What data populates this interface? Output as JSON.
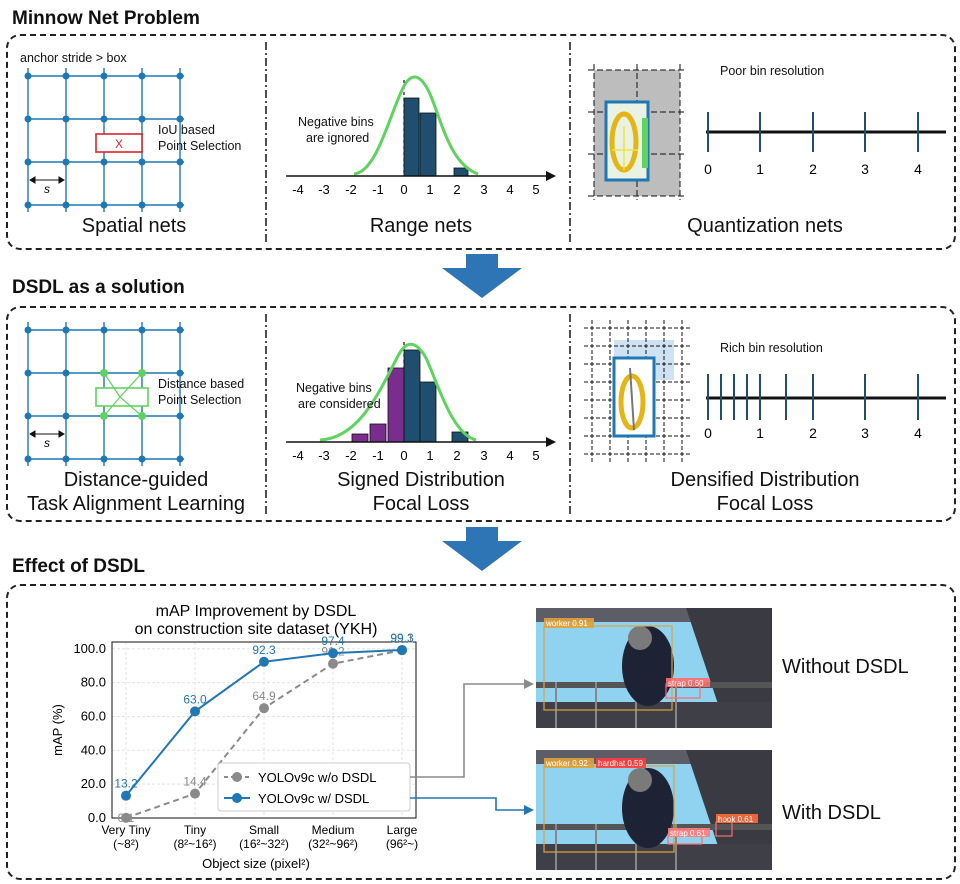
{
  "sections": {
    "s1_title": "Minnow Net Problem",
    "s2_title": "DSDL as a solution",
    "s3_title": "Effect of DSDL"
  },
  "row1": {
    "spatial": {
      "note": "anchor stride > box",
      "iou_line1": "IoU based",
      "iou_line2": "Point Selection",
      "stride_symbol": "s",
      "box_marker": "X",
      "label": "Spatial nets"
    },
    "range": {
      "neg_line1": "Negative bins",
      "neg_line2": "are ignored",
      "ticks": [
        "-4",
        "-3",
        "-2",
        "-1",
        "0",
        "1",
        "2",
        "3",
        "4",
        "5"
      ],
      "label": "Range nets"
    },
    "quant": {
      "note": "Poor bin resolution",
      "ticks": [
        "0",
        "1",
        "2",
        "3",
        "4"
      ],
      "label": "Quantization nets"
    }
  },
  "row2": {
    "spatial": {
      "dist_line1": "Distance based",
      "dist_line2": "Point Selection",
      "stride_symbol": "s",
      "label_line1": "Distance-guided",
      "label_line2": "Task Alignment Learning"
    },
    "range": {
      "neg_line1": "Negative bins",
      "neg_line2": "are considered",
      "ticks": [
        "-4",
        "-3",
        "-2",
        "-1",
        "0",
        "1",
        "2",
        "3",
        "4",
        "5"
      ],
      "label_line1": "Signed Distribution",
      "label_line2": "Focal Loss"
    },
    "quant": {
      "note": "Rich bin resolution",
      "ticks": [
        "0",
        "1",
        "2",
        "3",
        "4"
      ],
      "label_line1": "Densified Distribution",
      "label_line2": "Focal Loss"
    }
  },
  "chart_data": {
    "type": "line",
    "title": "mAP Improvement by DSDL",
    "subtitle": "on construction site dataset (YKH)",
    "xlabel": "Object size (pixel²)",
    "ylabel": "mAP (%)",
    "categories": [
      "Very Tiny\n(~8²)",
      "Tiny\n(8²~16²)",
      "Small\n(16²~32²)",
      "Medium\n(32²~96²)",
      "Large\n(96²~)"
    ],
    "ylim": [
      0,
      100
    ],
    "yticks": [
      "0.0",
      "20.0",
      "40.0",
      "60.0",
      "80.0",
      "100.0"
    ],
    "grid": true,
    "legend_position": "lower-right",
    "series": [
      {
        "name": "YOLOv9c w/o DSDL",
        "values": [
          0.1,
          14.4,
          64.9,
          91.2,
          99.1
        ],
        "labels": [
          "0.1",
          "14.4",
          "64.9",
          "91.2",
          "99.1"
        ],
        "color": "#8a8a8a",
        "style": "dashed"
      },
      {
        "name": "YOLOv9c w/ DSDL",
        "values": [
          13.2,
          63.0,
          92.3,
          97.4,
          99.3
        ],
        "labels": [
          "13.2",
          "63.0",
          "92.3",
          "97.4",
          "99.3"
        ],
        "color": "#1f77b4",
        "style": "solid"
      }
    ]
  },
  "results": {
    "top_caption": "Without DSDL",
    "bottom_caption": "With DSDL",
    "top_dets": [
      "worker 0.91",
      "strap 0.60"
    ],
    "bottom_dets": [
      "worker 0.92",
      "hardhat 0.59",
      "hook 0.61",
      "strap 0.61"
    ]
  },
  "colors": {
    "blue_arrow": "#2e75b6",
    "bar_blue": "#1f4e6e",
    "bar_purple": "#7b2d8e",
    "curve_green": "#5fd35f",
    "node_blue": "#1f77b4"
  }
}
